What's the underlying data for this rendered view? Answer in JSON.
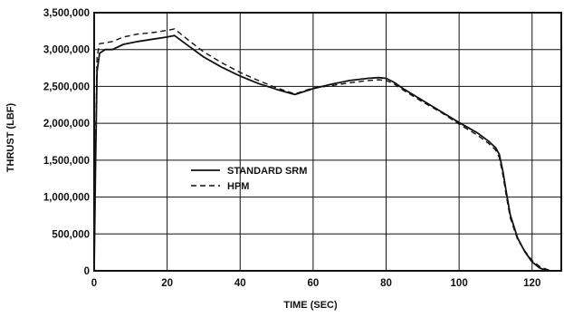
{
  "chart_data": {
    "type": "line",
    "xlabel": "TIME (SEC)",
    "ylabel": "THRUST (LBF)",
    "xlim": [
      0,
      128
    ],
    "ylim": [
      0,
      3500000
    ],
    "grid": true,
    "legend_position": "center-left",
    "x_ticks": [
      {
        "value": 0,
        "label": "0"
      },
      {
        "value": 20,
        "label": "20"
      },
      {
        "value": 40,
        "label": "40"
      },
      {
        "value": 60,
        "label": "60"
      },
      {
        "value": 80,
        "label": "80"
      },
      {
        "value": 100,
        "label": "100"
      },
      {
        "value": 120,
        "label": "120"
      }
    ],
    "y_ticks": [
      {
        "value": 0,
        "label": "0"
      },
      {
        "value": 500000,
        "label": "500,000"
      },
      {
        "value": 1000000,
        "label": "1,000,000"
      },
      {
        "value": 1500000,
        "label": "1,500,000"
      },
      {
        "value": 2000000,
        "label": "2,000,000"
      },
      {
        "value": 2500000,
        "label": "2,500,000"
      },
      {
        "value": 3000000,
        "label": "3,000,000"
      },
      {
        "value": 3500000,
        "label": "3,500,000"
      }
    ],
    "series": [
      {
        "name": "STANDARD SRM",
        "style": "solid",
        "color": "#111111",
        "points": [
          [
            0,
            0
          ],
          [
            0.4,
            1500000
          ],
          [
            0.8,
            2700000
          ],
          [
            1.5,
            2950000
          ],
          [
            3,
            3000000
          ],
          [
            5,
            3000000
          ],
          [
            8,
            3070000
          ],
          [
            12,
            3110000
          ],
          [
            16,
            3140000
          ],
          [
            20,
            3170000
          ],
          [
            22,
            3190000
          ],
          [
            25,
            3080000
          ],
          [
            30,
            2900000
          ],
          [
            35,
            2760000
          ],
          [
            40,
            2640000
          ],
          [
            45,
            2540000
          ],
          [
            50,
            2460000
          ],
          [
            55,
            2390000
          ],
          [
            60,
            2470000
          ],
          [
            65,
            2530000
          ],
          [
            70,
            2580000
          ],
          [
            75,
            2610000
          ],
          [
            78,
            2620000
          ],
          [
            80,
            2610000
          ],
          [
            82,
            2560000
          ],
          [
            85,
            2460000
          ],
          [
            90,
            2310000
          ],
          [
            95,
            2160000
          ],
          [
            100,
            2010000
          ],
          [
            105,
            1870000
          ],
          [
            108,
            1760000
          ],
          [
            110,
            1670000
          ],
          [
            111,
            1580000
          ],
          [
            112,
            1350000
          ],
          [
            113,
            1050000
          ],
          [
            114,
            760000
          ],
          [
            116,
            450000
          ],
          [
            118,
            260000
          ],
          [
            120,
            120000
          ],
          [
            122,
            40000
          ],
          [
            124,
            0
          ]
        ]
      },
      {
        "name": "HPM",
        "style": "dashed",
        "color": "#111111",
        "points": [
          [
            0,
            0
          ],
          [
            0.4,
            1700000
          ],
          [
            0.8,
            2900000
          ],
          [
            1.5,
            3080000
          ],
          [
            3,
            3090000
          ],
          [
            5,
            3110000
          ],
          [
            8,
            3170000
          ],
          [
            12,
            3210000
          ],
          [
            16,
            3230000
          ],
          [
            20,
            3260000
          ],
          [
            22,
            3280000
          ],
          [
            25,
            3160000
          ],
          [
            30,
            2970000
          ],
          [
            35,
            2820000
          ],
          [
            40,
            2690000
          ],
          [
            45,
            2580000
          ],
          [
            50,
            2480000
          ],
          [
            55,
            2400000
          ],
          [
            60,
            2480000
          ],
          [
            65,
            2510000
          ],
          [
            70,
            2550000
          ],
          [
            75,
            2580000
          ],
          [
            78,
            2590000
          ],
          [
            80,
            2580000
          ],
          [
            82,
            2540000
          ],
          [
            85,
            2440000
          ],
          [
            90,
            2290000
          ],
          [
            95,
            2150000
          ],
          [
            100,
            1990000
          ],
          [
            105,
            1840000
          ],
          [
            108,
            1730000
          ],
          [
            110,
            1640000
          ],
          [
            111,
            1540000
          ],
          [
            112,
            1300000
          ],
          [
            113,
            1000000
          ],
          [
            114,
            720000
          ],
          [
            116,
            430000
          ],
          [
            118,
            270000
          ],
          [
            120,
            140000
          ],
          [
            122,
            60000
          ],
          [
            124,
            20000
          ],
          [
            126,
            0
          ]
        ]
      }
    ]
  }
}
